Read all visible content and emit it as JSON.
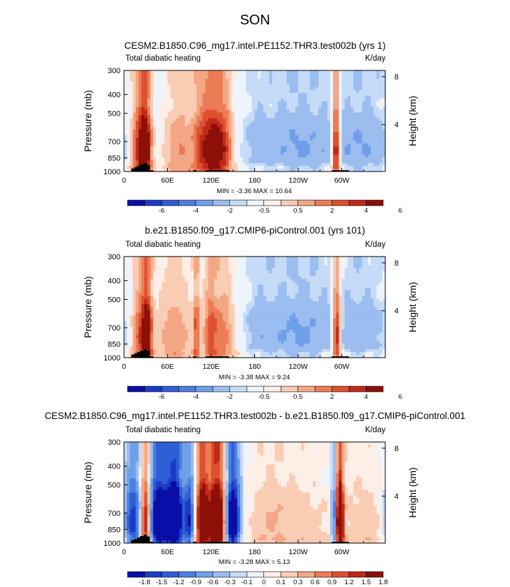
{
  "page": {
    "title": "SON"
  },
  "colors": {
    "land": "#000000",
    "palette": [
      "#0a0ea8",
      "#1b3cc4",
      "#2f5ed6",
      "#4b7fe0",
      "#6f9fe8",
      "#9bbdf0",
      "#c5dbf7",
      "#eef4fc",
      "#fdeee6",
      "#f9ccb4",
      "#f4a784",
      "#ec7c55",
      "#dd5131",
      "#c02a19",
      "#8c1009"
    ]
  },
  "chart_data": [
    {
      "type": "heatmap",
      "title": "CESM2.B1850.C96_mg17.intel.PE1152.THR3.test002b (yrs 1)",
      "left_label": "Total diabatic heating",
      "right_label": "K/day",
      "ylabel": "Pressure (mb)",
      "ylabel_right": "Height (km)",
      "x_ticks": [
        "0",
        "60E",
        "120E",
        "180",
        "120W",
        "60W"
      ],
      "x_tick_lon": [
        0,
        60,
        120,
        180,
        240,
        300
      ],
      "xlim": [
        0,
        360
      ],
      "y_ticks": [
        "300",
        "400",
        "500",
        "700",
        "850",
        "1000"
      ],
      "y_tick_p": [
        300,
        400,
        500,
        700,
        850,
        1000
      ],
      "ylim_mb": [
        1000,
        300
      ],
      "y_right_ticks": [
        "8",
        "4"
      ],
      "y_right_km": [
        8,
        4
      ],
      "stats": "MIN = -3.36  MAX = 10.64",
      "min": -3.36,
      "max": 10.64,
      "colorbar_labels": [
        "-6",
        "-4",
        "-2",
        "-0.5",
        "0.5",
        "2",
        "4",
        "6"
      ],
      "colorbar_levels": [
        -7,
        -6,
        -5,
        -4,
        -3,
        -2,
        -1,
        -0.5,
        0,
        0.5,
        1,
        2,
        3,
        4,
        5,
        6,
        7
      ],
      "scale": 5,
      "bands": [
        {
          "lon": 20,
          "width": 8,
          "amp": 4.5
        },
        {
          "lon": 30,
          "width": 6,
          "amp": 6.0
        },
        {
          "lon": 75,
          "width": 14,
          "amp": 2.6
        },
        {
          "lon": 108,
          "width": 10,
          "amp": 4.2
        },
        {
          "lon": 125,
          "width": 9,
          "amp": 5.0
        },
        {
          "lon": 140,
          "width": 8,
          "amp": 3.5
        },
        {
          "lon": 182,
          "width": 14,
          "amp": -0.7
        },
        {
          "lon": 240,
          "width": 40,
          "amp": -1.8
        },
        {
          "lon": 292,
          "width": 4,
          "amp": 6.5
        },
        {
          "lon": 330,
          "width": 30,
          "amp": -1.6
        }
      ]
    },
    {
      "type": "heatmap",
      "title": "b.e21.B1850.f09_g17.CMIP6-piControl.001 (yrs 101)",
      "left_label": "Total diabatic heating",
      "right_label": "K/day",
      "ylabel": "Pressure (mb)",
      "ylabel_right": "Height (km)",
      "x_ticks": [
        "0",
        "60E",
        "120E",
        "180",
        "120W",
        "60W"
      ],
      "x_tick_lon": [
        0,
        60,
        120,
        180,
        240,
        300
      ],
      "xlim": [
        0,
        360
      ],
      "y_ticks": [
        "300",
        "400",
        "500",
        "700",
        "850",
        "1000"
      ],
      "y_tick_p": [
        300,
        400,
        500,
        700,
        850,
        1000
      ],
      "ylim_mb": [
        1000,
        300
      ],
      "y_right_ticks": [
        "8",
        "4"
      ],
      "y_right_km": [
        8,
        4
      ],
      "stats": "MIN = -3.38  MAX = 9.24",
      "min": -3.38,
      "max": 9.24,
      "colorbar_labels": [
        "-6",
        "-4",
        "-2",
        "-0.5",
        "0.5",
        "2",
        "4",
        "6"
      ],
      "colorbar_levels": [
        -7,
        -6,
        -5,
        -4,
        -3,
        -2,
        -1,
        -0.5,
        0,
        0.5,
        1,
        2,
        3,
        4,
        5,
        6,
        7
      ],
      "scale": 5,
      "bands": [
        {
          "lon": 22,
          "width": 8,
          "amp": 4.0
        },
        {
          "lon": 32,
          "width": 5,
          "amp": 5.5
        },
        {
          "lon": 70,
          "width": 18,
          "amp": 2.5
        },
        {
          "lon": 100,
          "width": 3,
          "amp": 3.5
        },
        {
          "lon": 118,
          "width": 6,
          "amp": 3.0
        },
        {
          "lon": 135,
          "width": 12,
          "amp": 3.2
        },
        {
          "lon": 185,
          "width": 14,
          "amp": -0.8
        },
        {
          "lon": 240,
          "width": 38,
          "amp": -1.9
        },
        {
          "lon": 293,
          "width": 4,
          "amp": 6.0
        },
        {
          "lon": 330,
          "width": 28,
          "amp": -1.4
        }
      ]
    },
    {
      "type": "heatmap",
      "title": "CESM2.B1850.C96_mg17.intel.PE1152.THR3.test002b - b.e21.B1850.f09_g17.CMIP6-piControl.001",
      "left_label": "Total diabatic heating",
      "right_label": "K/day",
      "ylabel": "Pressure (mb)",
      "ylabel_right": "Height (km)",
      "x_ticks": [
        "0",
        "60E",
        "120E",
        "180",
        "120W",
        "60W"
      ],
      "x_tick_lon": [
        0,
        60,
        120,
        180,
        240,
        300
      ],
      "xlim": [
        0,
        360
      ],
      "y_ticks": [
        "300",
        "400",
        "500",
        "700",
        "850",
        "1000"
      ],
      "y_tick_p": [
        300,
        400,
        500,
        700,
        850,
        1000
      ],
      "ylim_mb": [
        1000,
        300
      ],
      "y_right_ticks": [
        "8",
        "4"
      ],
      "y_right_km": [
        8,
        4
      ],
      "stats": "MIN = -3.28  MAX = 5.13",
      "min": -3.28,
      "max": 5.13,
      "colorbar_labels": [
        "-1.8",
        "-1.5",
        "-1.2",
        "-0.9",
        "-0.6",
        "-0.3",
        "-0.1",
        "0",
        "0.1",
        "0.3",
        "0.6",
        "0.9",
        "1.2",
        "1.5",
        "1.8"
      ],
      "colorbar_levels": [
        -2.1,
        -1.8,
        -1.5,
        -1.2,
        -0.9,
        -0.6,
        -0.3,
        -0.1,
        0,
        0.1,
        0.3,
        0.6,
        0.9,
        1.2,
        1.5,
        1.8,
        2.1
      ],
      "scale": 1.6,
      "bands": [
        {
          "lon": 12,
          "width": 8,
          "amp": -1.6
        },
        {
          "lon": 30,
          "width": 5,
          "amp": 2.0
        },
        {
          "lon": 48,
          "width": 10,
          "amp": -2.4
        },
        {
          "lon": 70,
          "width": 8,
          "amp": -2.6
        },
        {
          "lon": 90,
          "width": 5,
          "amp": -1.5
        },
        {
          "lon": 108,
          "width": 6,
          "amp": 2.4
        },
        {
          "lon": 128,
          "width": 8,
          "amp": 2.8
        },
        {
          "lon": 150,
          "width": 7,
          "amp": -2.4
        },
        {
          "lon": 200,
          "width": 20,
          "amp": 0.5
        },
        {
          "lon": 250,
          "width": 25,
          "amp": 0.35
        },
        {
          "lon": 290,
          "width": 3,
          "amp": -1.6
        },
        {
          "lon": 297,
          "width": 4,
          "amp": 2.6
        },
        {
          "lon": 330,
          "width": 25,
          "amp": 0.4
        }
      ]
    }
  ]
}
